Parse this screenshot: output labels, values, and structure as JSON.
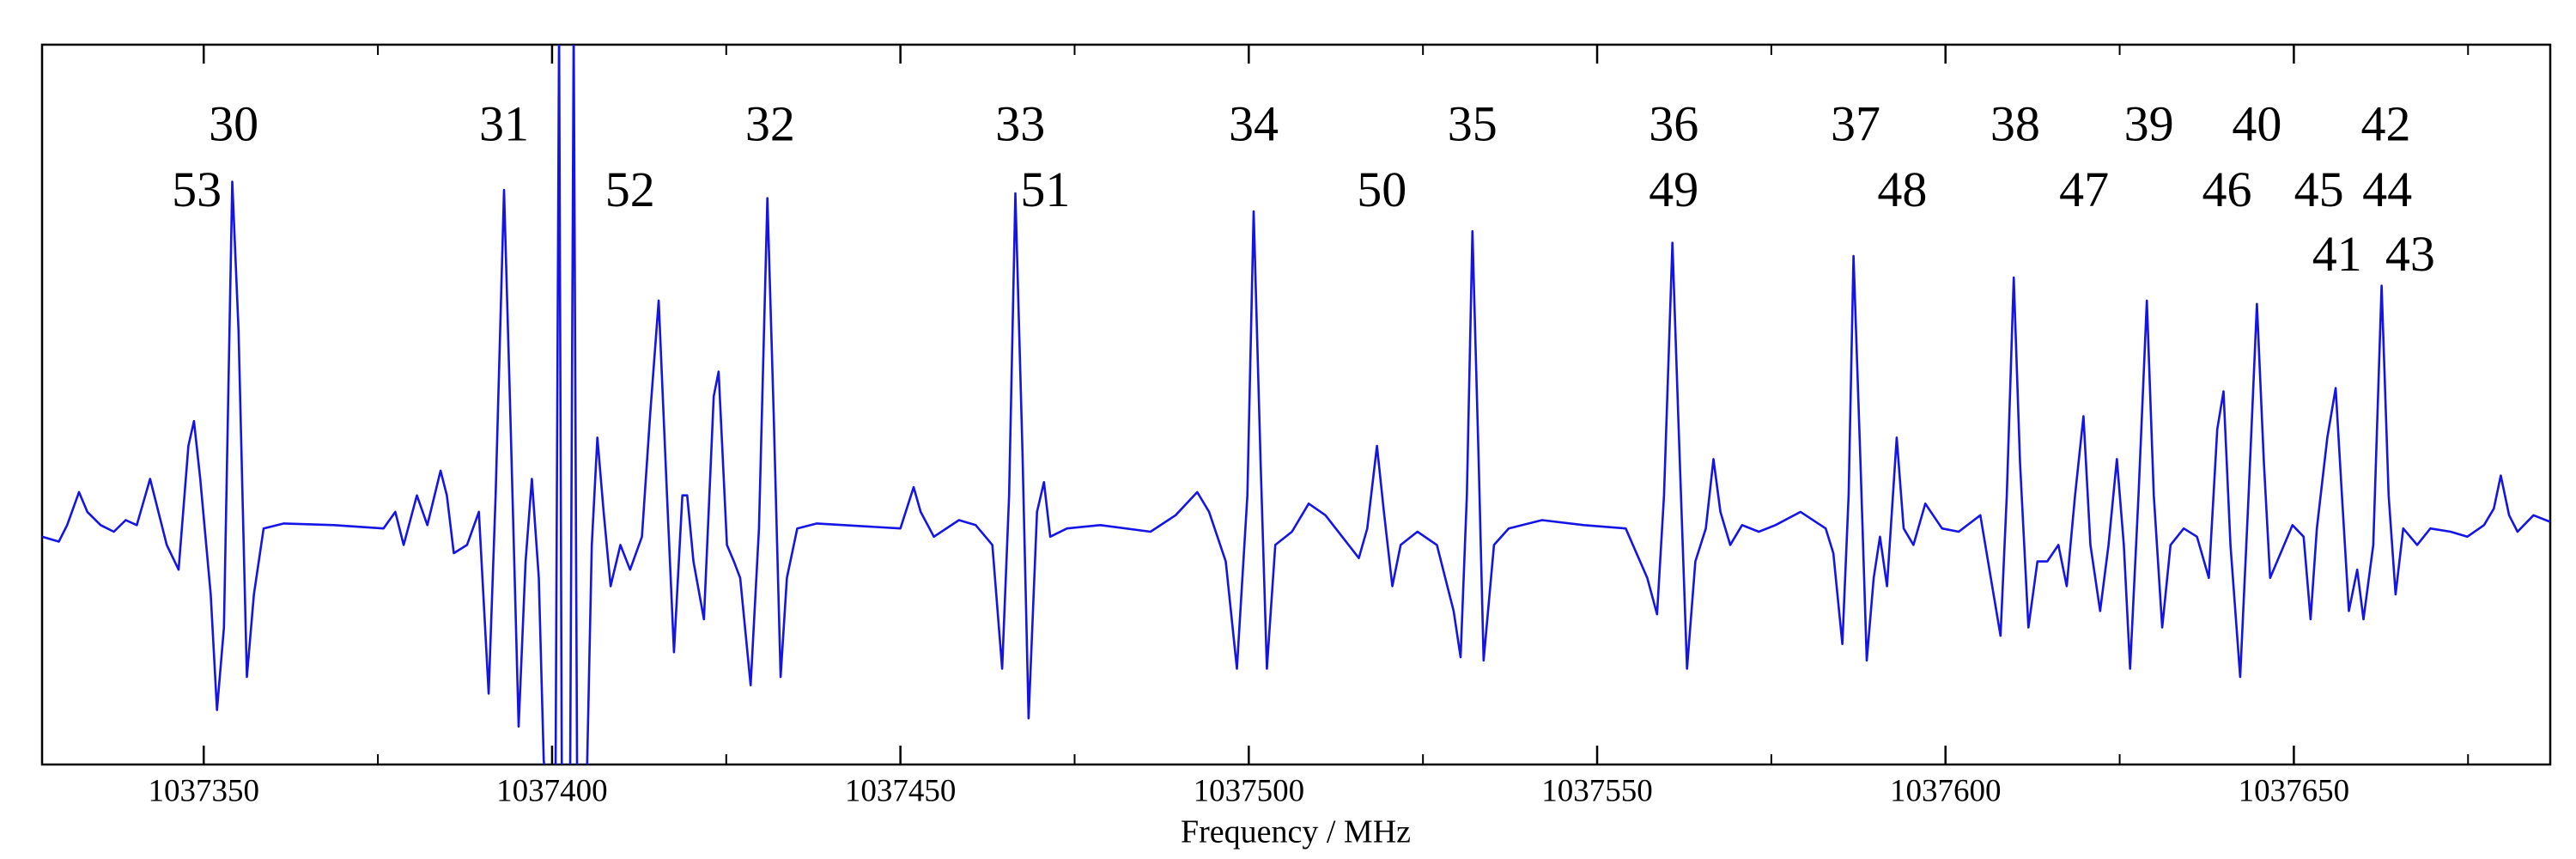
{
  "chart_data": {
    "type": "line",
    "xlabel": "Frequency / MHz",
    "color": "#1414e6",
    "xlim": [
      1037326.8,
      1037686.8
    ],
    "ylim": [
      -1.45,
      2.91
    ],
    "xticks": [
      1037350,
      1037400,
      1037450,
      1037500,
      1037550,
      1037600,
      1037650
    ],
    "xminorticks": [
      1037375,
      1037425,
      1037475,
      1037525,
      1037575,
      1037625,
      1037675
    ],
    "x": [
      1037326.8,
      1037329.2,
      1037330.4,
      1037332.1,
      1037333.3,
      1037335.2,
      1037337.1,
      1037338.8,
      1037340.4,
      1037342.3,
      1037343.5,
      1037344.7,
      1037346.4,
      1037347.8,
      1037348.6,
      1037349.5,
      1037351.0,
      1037351.9,
      1037352.9,
      1037354.1,
      1037355.0,
      1037356.2,
      1037357.2,
      1037358.6,
      1037361.5,
      1037368.7,
      1037375.8,
      1037377.5,
      1037378.7,
      1037380.6,
      1037382.1,
      1037384.0,
      1037384.9,
      1037385.9,
      1037387.8,
      1037389.5,
      1037390.9,
      1037391.9,
      1037393.1,
      1037394.0,
      1037395.2,
      1037396.2,
      1037397.1,
      1037398.1,
      1037398.8,
      1037399.0,
      1037400.5,
      1037401.0,
      1037401.4,
      1037402.6,
      1037403.1,
      1037403.6,
      1037405.0,
      1037405.7,
      1037406.5,
      1037407.4,
      1037408.4,
      1037409.8,
      1037411.2,
      1037412.9,
      1037414.1,
      1037415.3,
      1037416.5,
      1037417.5,
      1037418.7,
      1037419.4,
      1037420.3,
      1037421.8,
      1037423.2,
      1037423.9,
      1037425.1,
      1037426.1,
      1037427.0,
      1037428.5,
      1037429.7,
      1037430.9,
      1037431.8,
      1037432.8,
      1037433.7,
      1037435.2,
      1037438.0,
      1037450.0,
      1037451.9,
      1037452.9,
      1037454.8,
      1037458.4,
      1037460.8,
      1037463.2,
      1037464.6,
      1037465.6,
      1037466.5,
      1037467.5,
      1037468.4,
      1037469.6,
      1037470.6,
      1037471.5,
      1037473.9,
      1037478.7,
      1037485.9,
      1037489.5,
      1037492.6,
      1037494.3,
      1037496.7,
      1037498.3,
      1037499.8,
      1037500.7,
      1037501.7,
      1037502.6,
      1037503.8,
      1037506.2,
      1037508.6,
      1037511.0,
      1037513.4,
      1037515.8,
      1037517.0,
      1037518.4,
      1037519.4,
      1037520.6,
      1037521.8,
      1037524.2,
      1037527.0,
      1037529.4,
      1037530.4,
      1037531.3,
      1037532.1,
      1037533.0,
      1037533.7,
      1037535.2,
      1037537.3,
      1037542.1,
      1037548.1,
      1037554.1,
      1037557.2,
      1037558.6,
      1037559.6,
      1037560.8,
      1037561.7,
      1037562.9,
      1037564.1,
      1037565.6,
      1037566.7,
      1037567.7,
      1037569.1,
      1037570.8,
      1037573.2,
      1037575.6,
      1037579.2,
      1037582.8,
      1037583.9,
      1037585.2,
      1037586.1,
      1037586.8,
      1037587.8,
      1037588.7,
      1037589.7,
      1037590.6,
      1037591.6,
      1037593.0,
      1037594.0,
      1037595.4,
      1037597.1,
      1037599.5,
      1037601.9,
      1037605.0,
      1037606.7,
      1037607.9,
      1037608.8,
      1037609.8,
      1037610.7,
      1037611.9,
      1037613.2,
      1037614.6,
      1037616.2,
      1037617.4,
      1037618.6,
      1037619.8,
      1037620.8,
      1037622.2,
      1037623.4,
      1037624.6,
      1037625.6,
      1037626.5,
      1037627.7,
      1037628.9,
      1037629.9,
      1037631.1,
      1037632.3,
      1037634.2,
      1037636.1,
      1037637.8,
      1037639.0,
      1037639.9,
      1037640.9,
      1037642.3,
      1037643.5,
      1037644.7,
      1037645.7,
      1037646.6,
      1037648.1,
      1037649.8,
      1037651.4,
      1037652.4,
      1037653.3,
      1037654.8,
      1037656.0,
      1037656.9,
      1037657.9,
      1037659.1,
      1037660.0,
      1037661.4,
      1037662.6,
      1037663.6,
      1037664.6,
      1037665.7,
      1037667.7,
      1037669.6,
      1037672.5,
      1037674.9,
      1037677.3,
      1037678.7,
      1037679.7,
      1037680.9,
      1037682.1,
      1037684.4,
      1037686.8
    ],
    "values": [
      -0.07,
      -0.1,
      0,
      0.2,
      0.08,
      0,
      -0.04,
      0.03,
      0,
      0.28,
      0.08,
      -0.12,
      -0.27,
      0.48,
      0.63,
      0.28,
      -0.42,
      -1.12,
      -0.62,
      2.08,
      1.18,
      -0.92,
      -0.42,
      -0.02,
      0.01,
      0,
      -0.02,
      0.08,
      -0.12,
      0.18,
      0,
      0.33,
      0.18,
      -0.17,
      -0.12,
      0.08,
      -1.02,
      0.18,
      2.03,
      0.68,
      -1.22,
      -0.22,
      0.28,
      -0.32,
      -1.42,
      -1.52,
      -1.52,
      3.03,
      -1.52,
      -1.52,
      3.03,
      -1.52,
      -1.52,
      -0.12,
      0.53,
      0.08,
      -0.37,
      -0.12,
      -0.27,
      -0.07,
      0.68,
      1.36,
      0.18,
      -0.77,
      0.18,
      0.18,
      -0.22,
      -0.57,
      0.78,
      0.93,
      -0.12,
      -0.22,
      -0.32,
      -0.97,
      -0.02,
      1.98,
      0.68,
      -0.92,
      -0.32,
      -0.02,
      0.01,
      -0.02,
      0.23,
      0.08,
      -0.07,
      0.03,
      0,
      -0.12,
      -0.87,
      0.18,
      2.01,
      0.48,
      -1.17,
      0.08,
      0.26,
      -0.07,
      -0.02,
      0,
      -0.04,
      0.06,
      0.2,
      0.08,
      -0.22,
      -0.87,
      0.18,
      1.9,
      0.38,
      -0.87,
      -0.12,
      -0.04,
      0.13,
      0.06,
      -0.07,
      -0.2,
      -0.02,
      0.48,
      0.08,
      -0.37,
      -0.12,
      -0.04,
      -0.12,
      -0.52,
      -0.8,
      0.18,
      1.78,
      0.38,
      -0.82,
      -0.12,
      -0.02,
      0.03,
      0,
      -0.02,
      -0.32,
      -0.54,
      0.18,
      1.71,
      0.58,
      -0.87,
      -0.22,
      -0.02,
      0.4,
      0.08,
      -0.12,
      0,
      -0.04,
      0,
      0.08,
      -0.02,
      -0.17,
      -0.72,
      0.18,
      1.63,
      0.38,
      -0.82,
      -0.32,
      -0.07,
      -0.37,
      0.53,
      -0.02,
      -0.12,
      0.13,
      -0.02,
      -0.04,
      0.06,
      -0.37,
      -0.67,
      0.18,
      1.5,
      0.38,
      -0.62,
      -0.22,
      -0.22,
      -0.12,
      -0.37,
      0.18,
      0.66,
      -0.12,
      -0.52,
      -0.12,
      0.4,
      -0.12,
      -0.87,
      0.18,
      1.36,
      0.18,
      -0.62,
      -0.12,
      -0.02,
      -0.07,
      -0.32,
      0.58,
      0.81,
      -0.12,
      -0.92,
      0.18,
      1.34,
      0.38,
      -0.32,
      -0.17,
      0,
      -0.07,
      -0.57,
      -0.02,
      0.53,
      0.83,
      0.18,
      -0.52,
      -0.27,
      -0.57,
      -0.12,
      1.45,
      0.18,
      -0.42,
      -0.02,
      -0.12,
      -0.02,
      -0.04,
      -0.07,
      0,
      0.1,
      0.3,
      0.06,
      -0.04,
      0.06,
      0.02
    ],
    "annotations": [
      {
        "text": "30",
        "x": 1037354.3,
        "y": 2.4
      },
      {
        "text": "53",
        "x": 1037349.0,
        "y": 2.0
      },
      {
        "text": "31",
        "x": 1037393.1,
        "y": 2.4
      },
      {
        "text": "52",
        "x": 1037411.2,
        "y": 2.0
      },
      {
        "text": "32",
        "x": 1037431.3,
        "y": 2.4
      },
      {
        "text": "33",
        "x": 1037467.2,
        "y": 2.4
      },
      {
        "text": "51",
        "x": 1037470.8,
        "y": 2.0
      },
      {
        "text": "34",
        "x": 1037500.7,
        "y": 2.4
      },
      {
        "text": "50",
        "x": 1037519.1,
        "y": 2.0
      },
      {
        "text": "35",
        "x": 1037532.1,
        "y": 2.4
      },
      {
        "text": "36",
        "x": 1037561.0,
        "y": 2.4
      },
      {
        "text": "49",
        "x": 1037561.0,
        "y": 2.0
      },
      {
        "text": "37",
        "x": 1037587.1,
        "y": 2.4
      },
      {
        "text": "48",
        "x": 1037593.8,
        "y": 2.0
      },
      {
        "text": "38",
        "x": 1037610.0,
        "y": 2.4
      },
      {
        "text": "47",
        "x": 1037619.9,
        "y": 2.0
      },
      {
        "text": "39",
        "x": 1037629.2,
        "y": 2.4
      },
      {
        "text": "40",
        "x": 1037644.7,
        "y": 2.4
      },
      {
        "text": "46",
        "x": 1037640.4,
        "y": 2.0
      },
      {
        "text": "42",
        "x": 1037663.2,
        "y": 2.4
      },
      {
        "text": "45",
        "x": 1037653.6,
        "y": 2.0
      },
      {
        "text": "44",
        "x": 1037663.4,
        "y": 2.0
      },
      {
        "text": "41",
        "x": 1037656.2,
        "y": 1.61
      },
      {
        "text": "43",
        "x": 1037666.7,
        "y": 1.61
      }
    ]
  }
}
